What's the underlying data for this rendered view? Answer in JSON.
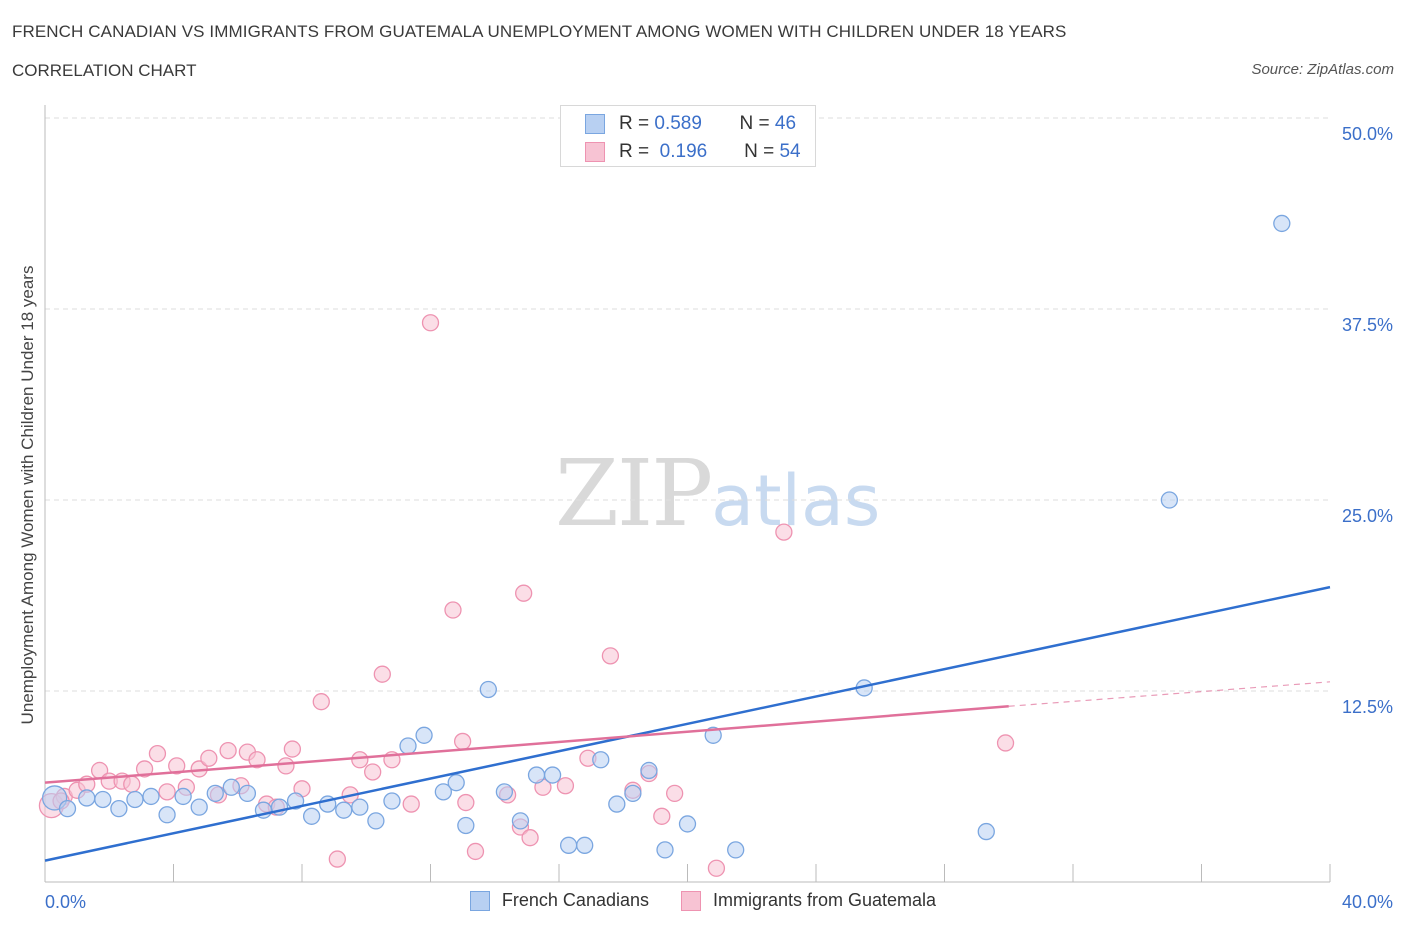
{
  "header": {
    "title": "FRENCH CANADIAN VS IMMIGRANTS FROM GUATEMALA UNEMPLOYMENT AMONG WOMEN WITH CHILDREN UNDER 18 YEARS",
    "subtitle": "CORRELATION CHART",
    "source": "Source: ZipAtlas.com"
  },
  "watermark": {
    "zip": "ZIP",
    "atlas": "atlas"
  },
  "legend": {
    "rows": [
      {
        "r_label": "R =",
        "r_value": "0.589",
        "n_label": "N =",
        "n_value": "46"
      },
      {
        "r_label": "R =",
        "r_value": "0.196",
        "n_label": "N =",
        "n_value": "54"
      }
    ]
  },
  "colors": {
    "blue_fill": "#b8d0f2",
    "blue_stroke": "#7aa6e0",
    "blue_line": "#2f6fcf",
    "pink_fill": "#f7c3d3",
    "pink_stroke": "#ee93b1",
    "pink_line": "#e0709a",
    "axis_text": "#3b6fc9",
    "grid": "#dedede"
  },
  "chart_data": {
    "type": "scatter",
    "title": "FRENCH CANADIAN VS IMMIGRANTS FROM GUATEMALA UNEMPLOYMENT AMONG WOMEN WITH CHILDREN UNDER 18 YEARS",
    "ylabel": "Unemployment Among Women with Children Under 18 years",
    "xlabel": "",
    "xlim": [
      0,
      40
    ],
    "ylim": [
      0,
      50
    ],
    "x_tick_labels": [
      "0.0%",
      "40.0%"
    ],
    "y_ticks": [
      12.5,
      25.0,
      37.5,
      50.0
    ],
    "y_tick_labels": [
      "12.5%",
      "25.0%",
      "37.5%",
      "50.0%"
    ],
    "grid": true,
    "legend_position": "top-center",
    "series": [
      {
        "name": "French Canadians",
        "r": 0.589,
        "n": 46,
        "trend": {
          "x0": 0,
          "y0": 1.4,
          "x1": 40,
          "y1": 19.3
        },
        "points": [
          [
            0.3,
            5.5
          ],
          [
            0.7,
            4.8
          ],
          [
            1.3,
            5.5
          ],
          [
            1.8,
            5.4
          ],
          [
            2.3,
            4.8
          ],
          [
            2.8,
            5.4
          ],
          [
            3.3,
            5.6
          ],
          [
            3.8,
            4.4
          ],
          [
            4.3,
            5.6
          ],
          [
            4.8,
            4.9
          ],
          [
            5.3,
            5.8
          ],
          [
            5.8,
            6.2
          ],
          [
            6.3,
            5.8
          ],
          [
            6.8,
            4.7
          ],
          [
            7.3,
            4.9
          ],
          [
            7.8,
            5.3
          ],
          [
            8.3,
            4.3
          ],
          [
            8.8,
            5.1
          ],
          [
            9.3,
            4.7
          ],
          [
            9.8,
            4.9
          ],
          [
            10.3,
            4.0
          ],
          [
            10.8,
            5.3
          ],
          [
            11.3,
            8.9
          ],
          [
            11.8,
            9.6
          ],
          [
            12.4,
            5.9
          ],
          [
            12.8,
            6.5
          ],
          [
            13.1,
            3.7
          ],
          [
            13.8,
            12.6
          ],
          [
            14.3,
            5.9
          ],
          [
            14.8,
            4.0
          ],
          [
            15.3,
            7.0
          ],
          [
            15.8,
            7.0
          ],
          [
            16.3,
            2.4
          ],
          [
            16.8,
            2.4
          ],
          [
            17.3,
            8.0
          ],
          [
            17.8,
            5.1
          ],
          [
            18.3,
            5.8
          ],
          [
            18.8,
            7.3
          ],
          [
            19.3,
            2.1
          ],
          [
            20.0,
            3.8
          ],
          [
            20.8,
            9.6
          ],
          [
            21.5,
            2.1
          ],
          [
            25.5,
            12.7
          ],
          [
            29.3,
            3.3
          ],
          [
            35.0,
            25.0
          ],
          [
            38.5,
            43.1
          ]
        ]
      },
      {
        "name": "Immigrants from Guatemala",
        "r": 0.196,
        "n": 54,
        "trend": {
          "x0": 0,
          "y0": 6.5,
          "x1": 30,
          "y1": 11.5,
          "dash_x1": 40,
          "dash_y1": 13.1
        },
        "points": [
          [
            0.2,
            5.0
          ],
          [
            0.6,
            5.6
          ],
          [
            1.0,
            6.0
          ],
          [
            1.3,
            6.4
          ],
          [
            1.7,
            7.3
          ],
          [
            2.0,
            6.6
          ],
          [
            2.4,
            6.6
          ],
          [
            2.7,
            6.4
          ],
          [
            3.1,
            7.4
          ],
          [
            3.5,
            8.4
          ],
          [
            3.8,
            5.9
          ],
          [
            4.1,
            7.6
          ],
          [
            4.4,
            6.2
          ],
          [
            4.8,
            7.4
          ],
          [
            5.1,
            8.1
          ],
          [
            5.4,
            5.7
          ],
          [
            5.7,
            8.6
          ],
          [
            6.1,
            6.3
          ],
          [
            6.3,
            8.5
          ],
          [
            6.6,
            8.0
          ],
          [
            6.9,
            5.1
          ],
          [
            7.2,
            4.9
          ],
          [
            7.5,
            7.6
          ],
          [
            7.7,
            8.7
          ],
          [
            8.0,
            6.1
          ],
          [
            8.6,
            11.8
          ],
          [
            9.1,
            1.5
          ],
          [
            9.5,
            5.7
          ],
          [
            9.8,
            8.0
          ],
          [
            10.2,
            7.2
          ],
          [
            10.5,
            13.6
          ],
          [
            10.8,
            8.0
          ],
          [
            11.4,
            5.1
          ],
          [
            12.0,
            36.6
          ],
          [
            12.7,
            17.8
          ],
          [
            13.1,
            5.2
          ],
          [
            13.4,
            2.0
          ],
          [
            13.0,
            9.2
          ],
          [
            14.4,
            5.7
          ],
          [
            14.8,
            3.6
          ],
          [
            14.9,
            18.9
          ],
          [
            15.1,
            2.9
          ],
          [
            15.5,
            6.2
          ],
          [
            16.2,
            6.3
          ],
          [
            16.9,
            8.1
          ],
          [
            17.6,
            14.8
          ],
          [
            18.3,
            6.0
          ],
          [
            18.8,
            7.1
          ],
          [
            19.2,
            4.3
          ],
          [
            19.6,
            5.8
          ],
          [
            20.9,
            0.9
          ],
          [
            23.0,
            22.9
          ],
          [
            29.9,
            9.1
          ],
          [
            0.5,
            5.3
          ]
        ]
      }
    ]
  }
}
